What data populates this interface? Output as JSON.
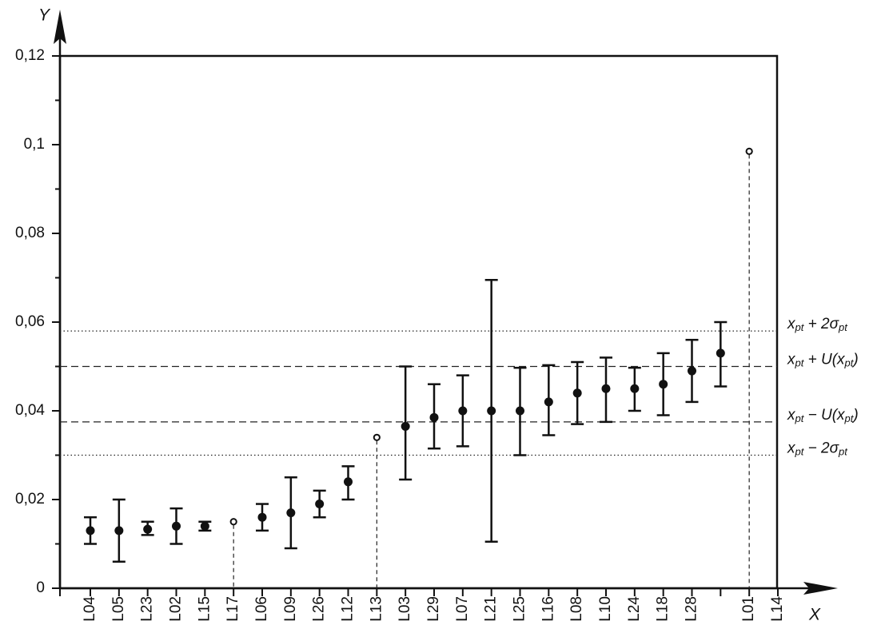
{
  "chart_data": {
    "type": "errorbar",
    "x_label": "X",
    "y_label": "Y",
    "categories": [
      "L04",
      "L05",
      "L23",
      "L02",
      "L15",
      "L17",
      "L06",
      "L09",
      "L26",
      "L12",
      "L13",
      "L03",
      "L29",
      "L07",
      "L21",
      "L25",
      "L16",
      "L08",
      "L10",
      "L24",
      "L18",
      "L28",
      null,
      "L01",
      "L14"
    ],
    "values": [
      0.013,
      0.013,
      0.0133,
      0.014,
      0.014,
      0.015,
      0.016,
      0.017,
      0.019,
      0.024,
      0.034,
      0.0365,
      0.0385,
      0.04,
      0.04,
      0.04,
      0.042,
      0.044,
      0.045,
      0.045,
      0.046,
      0.049,
      0.053,
      0.0985,
      null
    ],
    "lower": [
      0.01,
      0.006,
      0.012,
      0.01,
      0.013,
      null,
      0.013,
      0.009,
      0.016,
      0.02,
      null,
      0.0245,
      0.0315,
      0.032,
      0.0105,
      0.03,
      0.0345,
      0.037,
      0.0375,
      0.04,
      0.039,
      0.042,
      0.0455,
      null,
      null
    ],
    "upper": [
      0.016,
      0.02,
      0.015,
      0.018,
      0.015,
      null,
      0.019,
      0.025,
      0.022,
      0.0275,
      null,
      0.05,
      0.046,
      0.048,
      0.0695,
      0.0497,
      0.0503,
      0.051,
      0.052,
      0.0497,
      0.053,
      0.056,
      0.06,
      null,
      null
    ],
    "open_markers": [
      5,
      10,
      23
    ],
    "color": "#111111",
    "ylim": [
      0,
      0.12
    ],
    "yticks": [
      0,
      {
        "value": 0.02,
        "label": "0,02"
      },
      {
        "value": 0.04,
        "label": "0,04"
      },
      {
        "value": 0.06,
        "label": "0,06"
      },
      {
        "value": 0.08,
        "label": "0,08"
      },
      {
        "value": 0.1,
        "label": "0,1"
      },
      {
        "value": 0.12,
        "label": "0,12"
      }
    ],
    "yminorticks": [
      0.01,
      0.03,
      0.05,
      0.07,
      0.09,
      0.11
    ],
    "reference_lines": [
      {
        "value": 0.058,
        "style": "dotted",
        "label": [
          {
            "text": "x"
          },
          {
            "text": "pt",
            "sub": true
          },
          {
            "text": " + 2σ"
          },
          {
            "text": "pt",
            "sub": true
          }
        ]
      },
      {
        "value": 0.05,
        "style": "dashed",
        "label": [
          {
            "text": "x"
          },
          {
            "text": "pt",
            "sub": true
          },
          {
            "text": " + U(x"
          },
          {
            "text": "pt",
            "sub": true
          },
          {
            "text": ")"
          }
        ]
      },
      {
        "value": 0.0375,
        "style": "dashed",
        "label": [
          {
            "text": "x"
          },
          {
            "text": "pt",
            "sub": true
          },
          {
            "text": " − U(x"
          },
          {
            "text": "pt",
            "sub": true
          },
          {
            "text": ")"
          }
        ]
      },
      {
        "value": 0.03,
        "style": "dotted",
        "label": [
          {
            "text": "x"
          },
          {
            "text": "pt",
            "sub": true
          },
          {
            "text": "  − 2σ"
          },
          {
            "text": "pt",
            "sub": true
          }
        ]
      }
    ]
  }
}
